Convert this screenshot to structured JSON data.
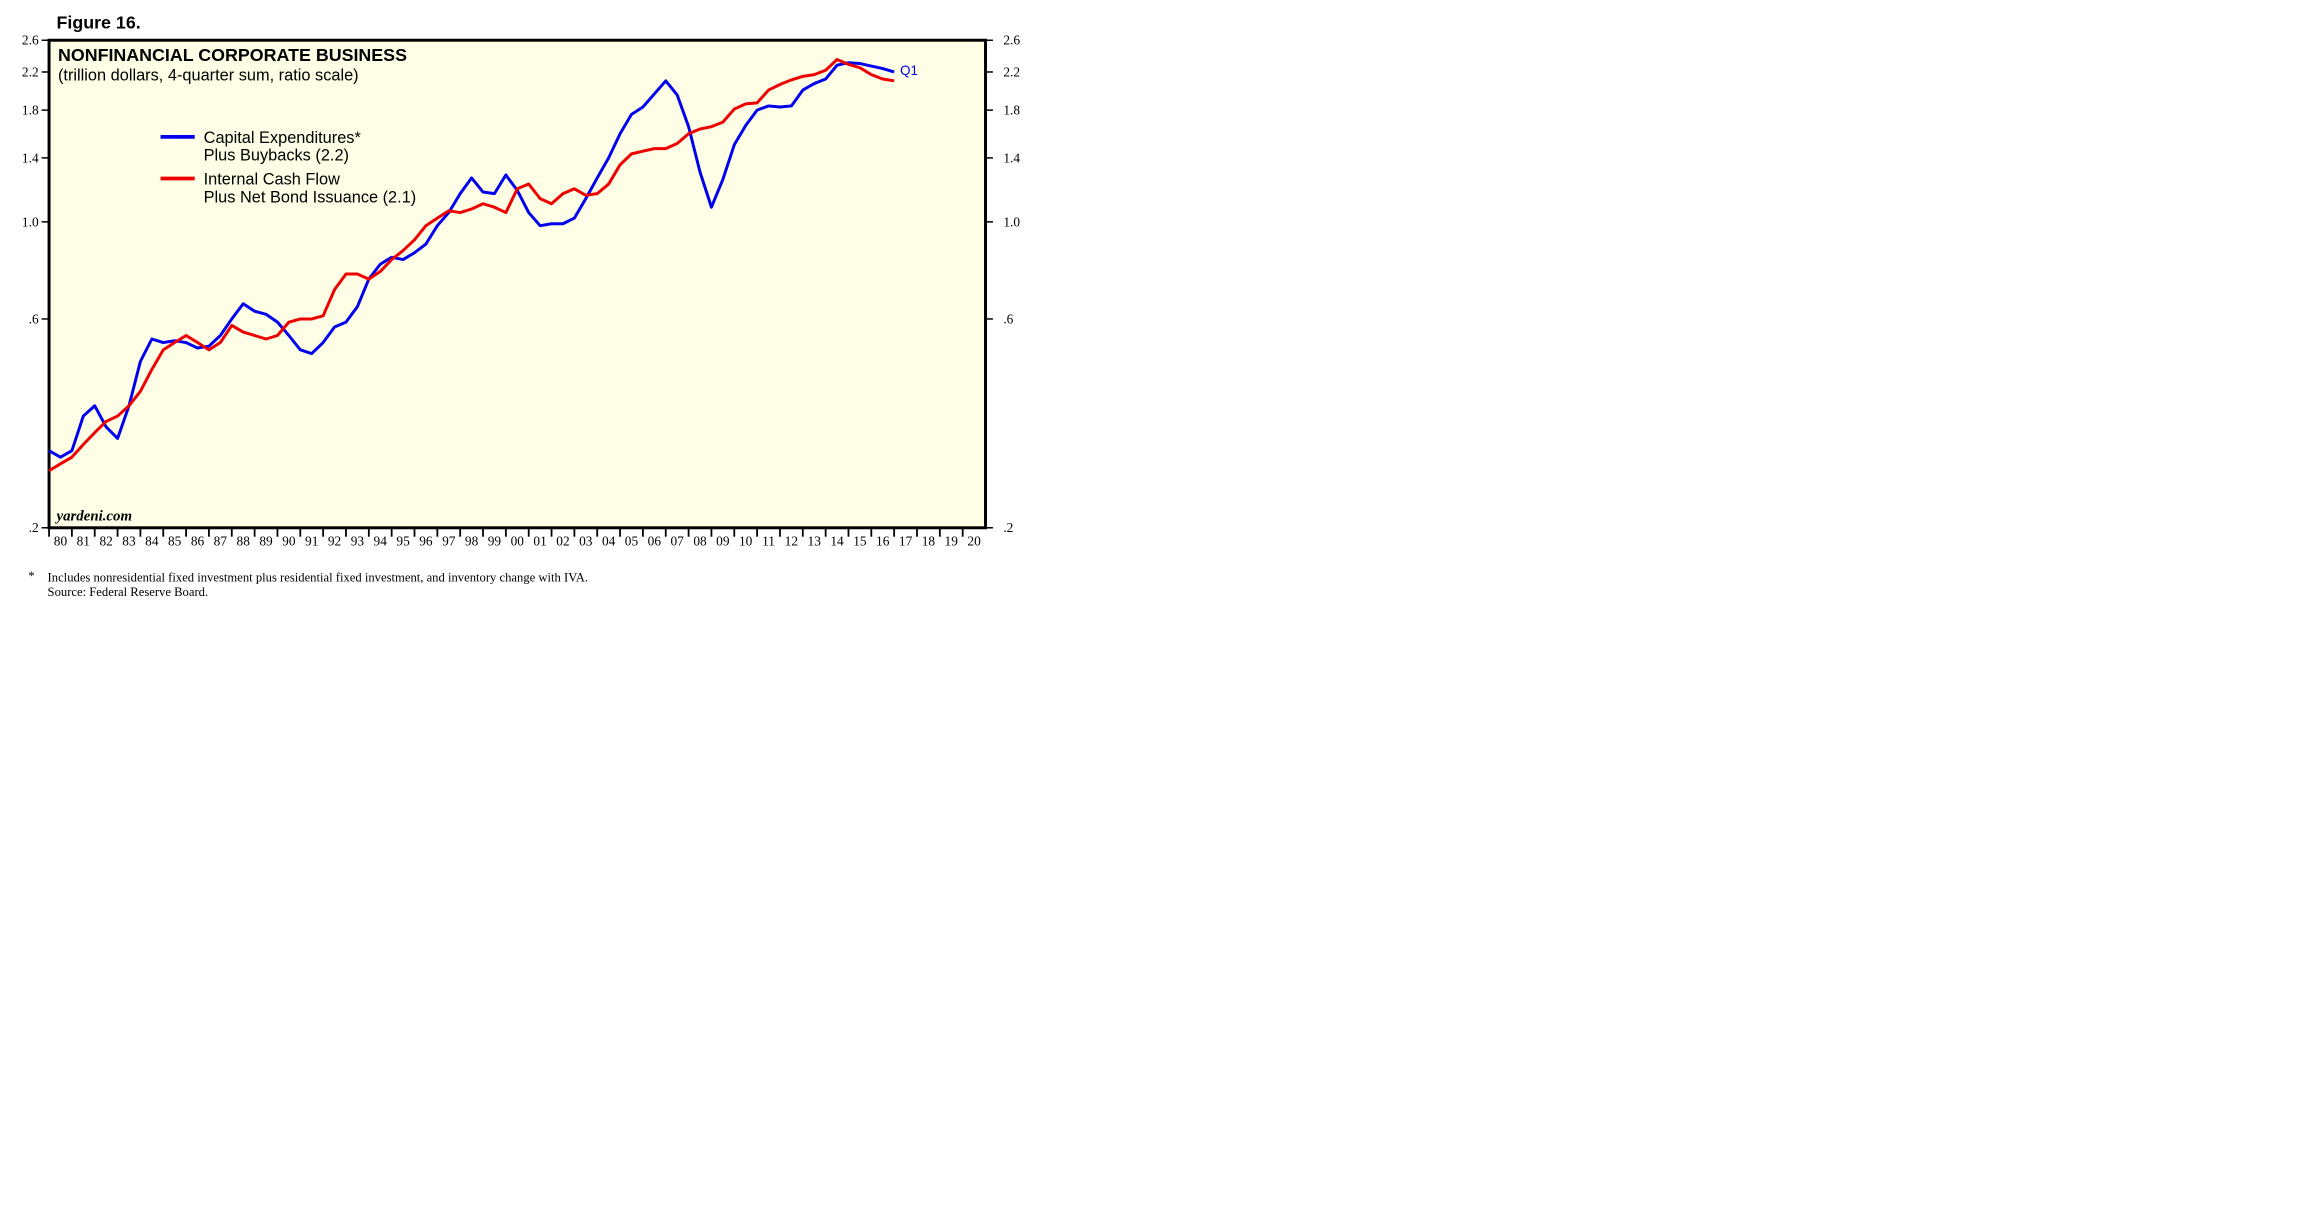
{
  "chart_data": {
    "type": "line",
    "figure_label": "Figure 16.",
    "title": "NONFINANCIAL CORPORATE BUSINESS",
    "subtitle": "(trillion dollars, 4-quarter sum, ratio scale)",
    "watermark": "yardeni.com",
    "annotation": "Q1",
    "footnote_marker": "*",
    "footnote": "Includes nonresidential fixed investment plus residential fixed investment, and inventory change with IVA.",
    "source": "Source: Federal Reserve Board.",
    "log_scale": true,
    "legend": "upper left",
    "background": "#fefee6",
    "xlim": [
      1980,
      2021
    ],
    "ylim": [
      0.2,
      2.6
    ],
    "yticks": [
      2.6,
      2.2,
      1.8,
      1.4,
      {
        "value": 1.0,
        "label": "1.0"
      },
      {
        "value": 0.6,
        "label": ".6"
      },
      {
        "value": 0.2,
        "label": ".2"
      }
    ],
    "xticks": [
      {
        "value": 1980,
        "label": "80"
      },
      {
        "value": 1981,
        "label": "81"
      },
      {
        "value": 1982,
        "label": "82"
      },
      {
        "value": 1983,
        "label": "83"
      },
      {
        "value": 1984,
        "label": "84"
      },
      {
        "value": 1985,
        "label": "85"
      },
      {
        "value": 1986,
        "label": "86"
      },
      {
        "value": 1987,
        "label": "87"
      },
      {
        "value": 1988,
        "label": "88"
      },
      {
        "value": 1989,
        "label": "89"
      },
      {
        "value": 1990,
        "label": "90"
      },
      {
        "value": 1991,
        "label": "91"
      },
      {
        "value": 1992,
        "label": "92"
      },
      {
        "value": 1993,
        "label": "93"
      },
      {
        "value": 1994,
        "label": "94"
      },
      {
        "value": 1995,
        "label": "95"
      },
      {
        "value": 1996,
        "label": "96"
      },
      {
        "value": 1997,
        "label": "97"
      },
      {
        "value": 1998,
        "label": "98"
      },
      {
        "value": 1999,
        "label": "99"
      },
      {
        "value": 2000,
        "label": "00"
      },
      {
        "value": 2001,
        "label": "01"
      },
      {
        "value": 2002,
        "label": "02"
      },
      {
        "value": 2003,
        "label": "03"
      },
      {
        "value": 2004,
        "label": "04"
      },
      {
        "value": 2005,
        "label": "05"
      },
      {
        "value": 2006,
        "label": "06"
      },
      {
        "value": 2007,
        "label": "07"
      },
      {
        "value": 2008,
        "label": "08"
      },
      {
        "value": 2009,
        "label": "09"
      },
      {
        "value": 2010,
        "label": "10"
      },
      {
        "value": 2011,
        "label": "11"
      },
      {
        "value": 2012,
        "label": "12"
      },
      {
        "value": 2013,
        "label": "13"
      },
      {
        "value": 2014,
        "label": "14"
      },
      {
        "value": 2015,
        "label": "15"
      },
      {
        "value": 2016,
        "label": "16"
      },
      {
        "value": 2017,
        "label": "17"
      },
      {
        "value": 2018,
        "label": "18"
      },
      {
        "value": 2019,
        "label": "19"
      },
      {
        "value": 2020,
        "label": "20"
      }
    ],
    "x": [
      1980,
      1980.5,
      1981,
      1981.5,
      1982,
      1982.5,
      1983,
      1983.5,
      1984,
      1984.5,
      1985,
      1985.5,
      1986,
      1986.5,
      1987,
      1987.5,
      1988,
      1988.5,
      1989,
      1989.5,
      1990,
      1990.5,
      1991,
      1991.5,
      1992,
      1992.5,
      1993,
      1993.5,
      1994,
      1994.5,
      1995,
      1995.5,
      1996,
      1996.5,
      1997,
      1997.5,
      1998,
      1998.5,
      1999,
      1999.5,
      2000,
      2000.5,
      2001,
      2001.5,
      2002,
      2002.5,
      2003,
      2003.5,
      2004,
      2004.5,
      2005,
      2005.5,
      2006,
      2006.5,
      2007,
      2007.5,
      2008,
      2008.5,
      2009,
      2009.5,
      2010,
      2010.5,
      2011,
      2011.5,
      2012,
      2012.5,
      2013,
      2013.5,
      2014,
      2014.5,
      2015,
      2015.5,
      2016,
      2016.5,
      2017
    ],
    "series": [
      {
        "name": "Capital Expenditures*\nPlus Buybacks (2.2)",
        "color": "#0000ee",
        "values": [
          0.3,
          0.29,
          0.3,
          0.36,
          0.38,
          0.34,
          0.32,
          0.38,
          0.48,
          0.54,
          0.53,
          0.535,
          0.53,
          0.515,
          0.52,
          0.55,
          0.6,
          0.65,
          0.625,
          0.615,
          0.59,
          0.55,
          0.51,
          0.5,
          0.53,
          0.575,
          0.59,
          0.64,
          0.74,
          0.8,
          0.83,
          0.82,
          0.85,
          0.89,
          0.98,
          1.05,
          1.16,
          1.26,
          1.17,
          1.16,
          1.28,
          1.18,
          1.05,
          0.98,
          0.99,
          0.99,
          1.02,
          1.13,
          1.26,
          1.4,
          1.59,
          1.76,
          1.83,
          1.96,
          2.1,
          1.95,
          1.65,
          1.3,
          1.08,
          1.25,
          1.5,
          1.66,
          1.8,
          1.84,
          1.83,
          1.84,
          2.0,
          2.07,
          2.12,
          2.28,
          2.31,
          2.3,
          2.27,
          2.24,
          2.2
        ]
      },
      {
        "name": "Internal Cash Flow\nPlus Net Bond Issuance (2.1)",
        "color": "#ee0000",
        "values": [
          0.27,
          0.28,
          0.29,
          0.31,
          0.33,
          0.35,
          0.36,
          0.38,
          0.41,
          0.46,
          0.51,
          0.53,
          0.55,
          0.53,
          0.51,
          0.53,
          0.58,
          0.56,
          0.55,
          0.54,
          0.55,
          0.59,
          0.6,
          0.6,
          0.61,
          0.7,
          0.76,
          0.76,
          0.74,
          0.77,
          0.82,
          0.86,
          0.91,
          0.98,
          1.02,
          1.06,
          1.05,
          1.07,
          1.1,
          1.08,
          1.05,
          1.19,
          1.22,
          1.13,
          1.1,
          1.16,
          1.19,
          1.15,
          1.16,
          1.22,
          1.35,
          1.43,
          1.45,
          1.47,
          1.47,
          1.51,
          1.59,
          1.63,
          1.65,
          1.69,
          1.81,
          1.86,
          1.87,
          2.0,
          2.06,
          2.11,
          2.15,
          2.17,
          2.22,
          2.35,
          2.29,
          2.25,
          2.17,
          2.12,
          2.1
        ]
      }
    ]
  }
}
